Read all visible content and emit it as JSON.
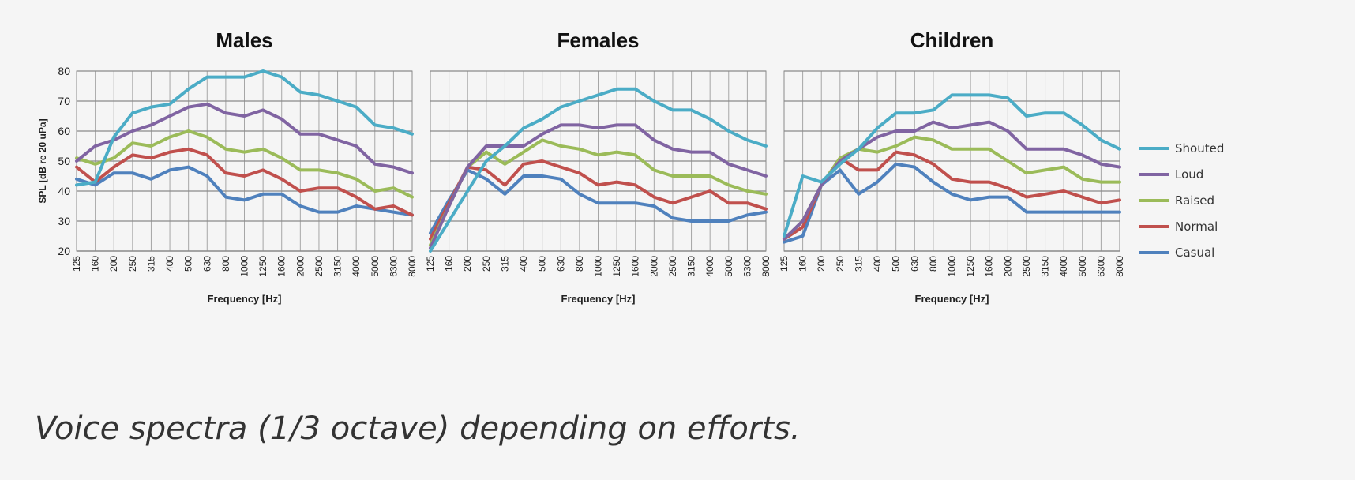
{
  "caption": "Voice spectra (1/3 octave) depending on efforts.",
  "legend": [
    {
      "name": "Shouted",
      "color": "#4bacc6"
    },
    {
      "name": "Loud",
      "color": "#8064a2"
    },
    {
      "name": "Raised",
      "color": "#9bbb59"
    },
    {
      "name": "Normal",
      "color": "#c0504d"
    },
    {
      "name": "Casual",
      "color": "#4f81bd"
    }
  ],
  "chart_data": [
    {
      "type": "line",
      "title": "Males",
      "xlabel": "Frequency [Hz]",
      "ylabel": "SPL [dB re 20 uPa]",
      "ylim": [
        20,
        80
      ],
      "yticks": [
        20,
        30,
        40,
        50,
        60,
        70,
        80
      ],
      "grid": true,
      "categories": [
        "125",
        "160",
        "200",
        "250",
        "315",
        "400",
        "500",
        "630",
        "800",
        "1000",
        "1250",
        "1600",
        "2000",
        "2500",
        "3150",
        "4000",
        "5000",
        "6300",
        "8000"
      ],
      "series": [
        {
          "name": "Shouted",
          "color": "#4bacc6",
          "values": [
            42,
            43,
            58,
            66,
            68,
            69,
            74,
            78,
            78,
            78,
            80,
            78,
            73,
            72,
            70,
            68,
            62,
            61,
            59
          ]
        },
        {
          "name": "Loud",
          "color": "#8064a2",
          "values": [
            50,
            55,
            57,
            60,
            62,
            65,
            68,
            69,
            66,
            65,
            67,
            64,
            59,
            59,
            57,
            55,
            49,
            48,
            46
          ]
        },
        {
          "name": "Raised",
          "color": "#9bbb59",
          "values": [
            51,
            49,
            51,
            56,
            55,
            58,
            60,
            58,
            54,
            53,
            54,
            51,
            47,
            47,
            46,
            44,
            40,
            41,
            38
          ]
        },
        {
          "name": "Normal",
          "color": "#c0504d",
          "values": [
            48,
            43,
            48,
            52,
            51,
            53,
            54,
            52,
            46,
            45,
            47,
            44,
            40,
            41,
            41,
            38,
            34,
            35,
            32
          ]
        },
        {
          "name": "Casual",
          "color": "#4f81bd",
          "values": [
            44,
            42,
            46,
            46,
            44,
            47,
            48,
            45,
            38,
            37,
            39,
            39,
            35,
            33,
            33,
            35,
            34,
            33,
            32
          ]
        }
      ]
    },
    {
      "type": "line",
      "title": "Females",
      "xlabel": "Frequency [Hz]",
      "ylabel": "",
      "ylim": [
        20,
        80
      ],
      "yticks": [
        20,
        30,
        40,
        50,
        60,
        70,
        80
      ],
      "grid": true,
      "categories": [
        "125",
        "160",
        "200",
        "250",
        "315",
        "400",
        "500",
        "630",
        "800",
        "1000",
        "1250",
        "1600",
        "2000",
        "2500",
        "3150",
        "4000",
        "5000",
        "6300",
        "8000"
      ],
      "series": [
        {
          "name": "Shouted",
          "color": "#4bacc6",
          "values": [
            20,
            30,
            40,
            50,
            55,
            61,
            64,
            68,
            70,
            72,
            74,
            74,
            70,
            67,
            67,
            64,
            60,
            57,
            55
          ]
        },
        {
          "name": "Loud",
          "color": "#8064a2",
          "values": [
            21,
            35,
            48,
            55,
            55,
            55,
            59,
            62,
            62,
            61,
            62,
            62,
            57,
            54,
            53,
            53,
            49,
            47,
            45
          ]
        },
        {
          "name": "Raised",
          "color": "#9bbb59",
          "values": [
            22,
            35,
            48,
            53,
            49,
            53,
            57,
            55,
            54,
            52,
            53,
            52,
            47,
            45,
            45,
            45,
            42,
            40,
            39
          ]
        },
        {
          "name": "Normal",
          "color": "#c0504d",
          "values": [
            24,
            36,
            48,
            47,
            42,
            49,
            50,
            48,
            46,
            42,
            43,
            42,
            38,
            36,
            38,
            40,
            36,
            36,
            34
          ]
        },
        {
          "name": "Casual",
          "color": "#4f81bd",
          "values": [
            26,
            37,
            47,
            44,
            39,
            45,
            45,
            44,
            39,
            36,
            36,
            36,
            35,
            31,
            30,
            30,
            30,
            32,
            33
          ]
        }
      ]
    },
    {
      "type": "line",
      "title": "Children",
      "xlabel": "Frequency [Hz]",
      "ylabel": "",
      "ylim": [
        20,
        80
      ],
      "yticks": [
        20,
        30,
        40,
        50,
        60,
        70,
        80
      ],
      "grid": true,
      "categories": [
        "125",
        "160",
        "200",
        "250",
        "315",
        "400",
        "500",
        "630",
        "800",
        "1000",
        "1250",
        "1600",
        "2000",
        "2500",
        "3150",
        "4000",
        "5000",
        "6300",
        "8000"
      ],
      "series": [
        {
          "name": "Shouted",
          "color": "#4bacc6",
          "values": [
            25,
            45,
            43,
            49,
            54,
            61,
            66,
            66,
            67,
            72,
            72,
            72,
            71,
            65,
            66,
            66,
            62,
            57,
            54
          ]
        },
        {
          "name": "Loud",
          "color": "#8064a2",
          "values": [
            24,
            30,
            42,
            50,
            54,
            58,
            60,
            60,
            63,
            61,
            62,
            63,
            60,
            54,
            54,
            54,
            52,
            49,
            48
          ]
        },
        {
          "name": "Raised",
          "color": "#9bbb59",
          "values": [
            24,
            30,
            42,
            51,
            54,
            53,
            55,
            58,
            57,
            54,
            54,
            54,
            50,
            46,
            47,
            48,
            44,
            43,
            43
          ]
        },
        {
          "name": "Normal",
          "color": "#c0504d",
          "values": [
            24,
            28,
            42,
            51,
            47,
            47,
            53,
            52,
            49,
            44,
            43,
            43,
            41,
            38,
            39,
            40,
            38,
            36,
            37
          ]
        },
        {
          "name": "Casual",
          "color": "#4f81bd",
          "values": [
            23,
            25,
            42,
            47,
            39,
            43,
            49,
            48,
            43,
            39,
            37,
            38,
            38,
            33,
            33,
            33,
            33,
            33,
            33
          ]
        }
      ]
    }
  ]
}
